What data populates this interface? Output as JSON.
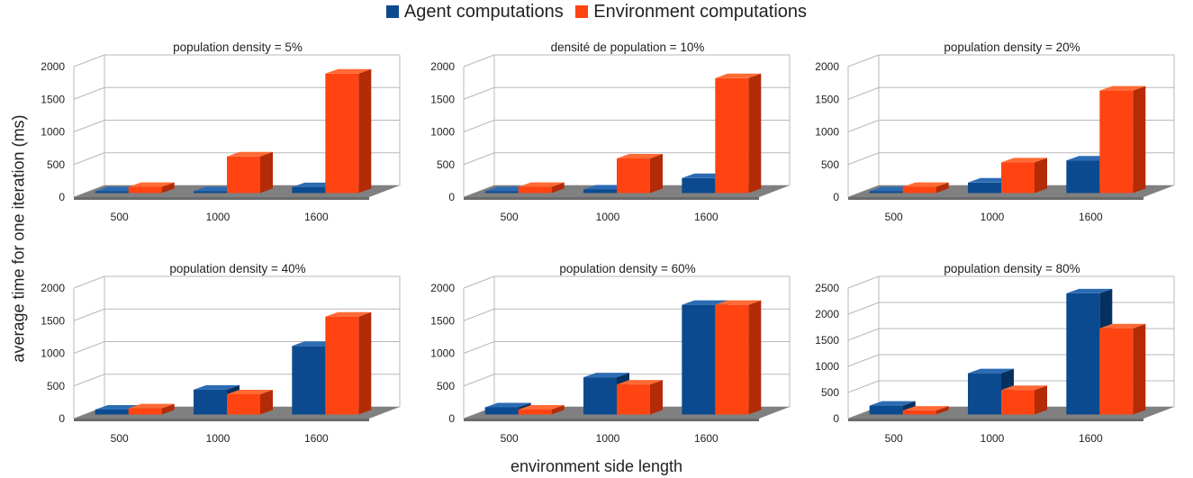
{
  "legend": {
    "agent_label": "Agent computations",
    "env_label": "Environment computations"
  },
  "colors": {
    "agent_front": "#0b4a8f",
    "agent_top": "#2d6bb3",
    "agent_side": "#06315f",
    "env_front": "#ff4411",
    "env_top": "#ff6a35",
    "env_side": "#b32b07",
    "floor": "#808080",
    "grid": "#b8b8b8"
  },
  "y_axis_label": "average time for one iteration (ms)",
  "x_axis_label": "environment side length",
  "chart_data": [
    {
      "type": "bar",
      "title": "population density = 5%",
      "categories": [
        "500",
        "1000",
        "1600"
      ],
      "series": [
        {
          "name": "Agent computations",
          "values": [
            10,
            25,
            90
          ]
        },
        {
          "name": "Environment computations",
          "values": [
            95,
            560,
            1830
          ]
        }
      ],
      "ylim": [
        0,
        2000
      ],
      "yticks": [
        "0",
        "500",
        "1000",
        "1500",
        "2000"
      ]
    },
    {
      "type": "bar",
      "title": "densité de population = 10%",
      "categories": [
        "500",
        "1000",
        "1600"
      ],
      "series": [
        {
          "name": "Agent computations",
          "values": [
            10,
            55,
            230
          ]
        },
        {
          "name": "Environment computations",
          "values": [
            95,
            530,
            1760
          ]
        }
      ],
      "ylim": [
        0,
        2000
      ],
      "yticks": [
        "0",
        "500",
        "1000",
        "1500",
        "2000"
      ]
    },
    {
      "type": "bar",
      "title": "population density = 20%",
      "categories": [
        "500",
        "1000",
        "1600"
      ],
      "series": [
        {
          "name": "Agent computations",
          "values": [
            25,
            160,
            500
          ]
        },
        {
          "name": "Environment computations",
          "values": [
            95,
            470,
            1570
          ]
        }
      ],
      "ylim": [
        0,
        2000
      ],
      "yticks": [
        "0",
        "500",
        "1000",
        "1500",
        "2000"
      ]
    },
    {
      "type": "bar",
      "title": "population density = 40%",
      "categories": [
        "500",
        "1000",
        "1600"
      ],
      "series": [
        {
          "name": "Agent computations",
          "values": [
            75,
            380,
            1050
          ]
        },
        {
          "name": "Environment computations",
          "values": [
            95,
            310,
            1500
          ]
        }
      ],
      "ylim": [
        0,
        2000
      ],
      "yticks": [
        "0",
        "500",
        "1000",
        "1500",
        "2000"
      ]
    },
    {
      "type": "bar",
      "title": "population density = 60%",
      "categories": [
        "500",
        "1000",
        "1600"
      ],
      "series": [
        {
          "name": "Agent computations",
          "values": [
            110,
            570,
            1680
          ]
        },
        {
          "name": "Environment computations",
          "values": [
            75,
            460,
            1680
          ]
        }
      ],
      "ylim": [
        0,
        2000
      ],
      "yticks": [
        "0",
        "500",
        "1000",
        "1500",
        "2000"
      ]
    },
    {
      "type": "bar",
      "title": "population density = 80%",
      "categories": [
        "500",
        "1000",
        "1600"
      ],
      "series": [
        {
          "name": "Agent computations",
          "values": [
            170,
            790,
            2320
          ]
        },
        {
          "name": "Environment computations",
          "values": [
            75,
            470,
            1650
          ]
        }
      ],
      "ylim": [
        0,
        2500
      ],
      "yticks": [
        "0",
        "500",
        "1000",
        "1500",
        "2000",
        "2500"
      ]
    }
  ]
}
